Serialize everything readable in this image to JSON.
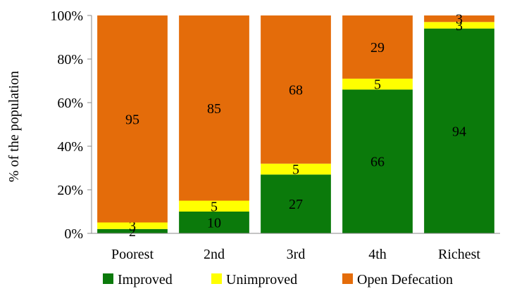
{
  "chart_data": {
    "type": "bar",
    "stacked": true,
    "title": "",
    "xlabel": "",
    "ylabel": "% of the population",
    "ylim": [
      0,
      100
    ],
    "y_ticks": [
      "0%",
      "20%",
      "40%",
      "60%",
      "80%",
      "100%"
    ],
    "y_tick_values": [
      0,
      20,
      40,
      60,
      80,
      100
    ],
    "grid": false,
    "legend_position": "bottom",
    "categories": [
      "Poorest",
      "2nd",
      "3rd",
      "4th",
      "Richest"
    ],
    "series": [
      {
        "name": "Improved",
        "color": "#0b7a0b",
        "values": [
          2,
          10,
          27,
          66,
          94
        ]
      },
      {
        "name": "Unimproved",
        "color": "#ffff00",
        "values": [
          3,
          5,
          5,
          5,
          3
        ]
      },
      {
        "name": "Open Defecation",
        "color": "#e46c0a",
        "values": [
          95,
          85,
          68,
          29,
          3
        ]
      }
    ]
  }
}
